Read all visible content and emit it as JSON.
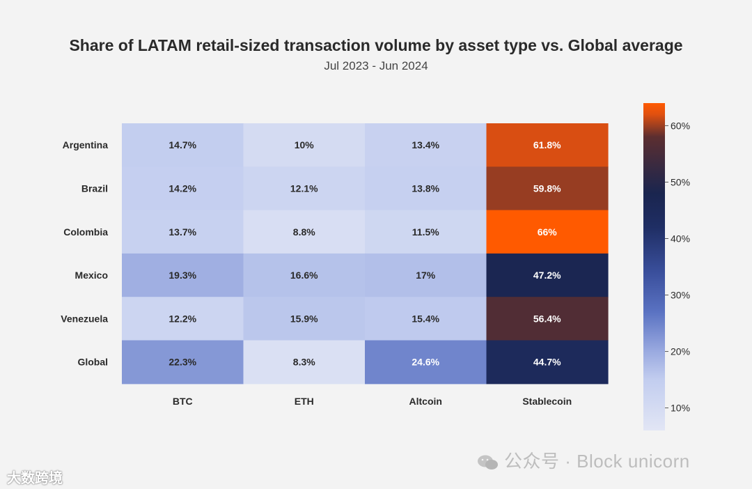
{
  "chart_data": {
    "type": "heatmap",
    "title": "Share of LATAM retail-sized transaction volume by asset type vs. Global average",
    "subtitle": "Jul 2023 - Jun 2024",
    "columns": [
      "BTC",
      "ETH",
      "Altcoin",
      "Stablecoin"
    ],
    "rows": [
      "Argentina",
      "Brazil",
      "Colombia",
      "Mexico",
      "Venezuela",
      "Global"
    ],
    "values": [
      [
        14.7,
        10,
        13.4,
        61.8
      ],
      [
        14.2,
        12.1,
        13.8,
        59.8
      ],
      [
        13.7,
        8.8,
        11.5,
        66
      ],
      [
        19.3,
        16.6,
        17,
        47.2
      ],
      [
        12.2,
        15.9,
        15.4,
        56.4
      ],
      [
        22.3,
        8.3,
        24.6,
        44.7
      ]
    ],
    "value_labels": [
      [
        "14.7%",
        "10%",
        "13.4%",
        "61.8%"
      ],
      [
        "14.2%",
        "12.1%",
        "13.8%",
        "59.8%"
      ],
      [
        "13.7%",
        "8.8%",
        "11.5%",
        "66%"
      ],
      [
        "19.3%",
        "16.6%",
        "17%",
        "47.2%"
      ],
      [
        "12.2%",
        "15.9%",
        "15.4%",
        "56.4%"
      ],
      [
        "22.3%",
        "8.3%",
        "24.6%",
        "44.7%"
      ]
    ],
    "colorbar": {
      "range": [
        6,
        64
      ],
      "ticks": [
        10,
        20,
        30,
        40,
        50,
        60
      ],
      "tick_labels": [
        "10%",
        "20%",
        "30%",
        "40%",
        "50%",
        "60%"
      ],
      "stops": [
        {
          "v": 6,
          "c": "#e2e6f5"
        },
        {
          "v": 15,
          "c": "#c2cdef"
        },
        {
          "v": 20,
          "c": "#9aaae0"
        },
        {
          "v": 27,
          "c": "#5a72c2"
        },
        {
          "v": 34,
          "c": "#3a4f9c"
        },
        {
          "v": 42,
          "c": "#1f2e64"
        },
        {
          "v": 48,
          "c": "#1a254f"
        },
        {
          "v": 53,
          "c": "#3a2a40"
        },
        {
          "v": 58,
          "c": "#5c2e30"
        },
        {
          "v": 62,
          "c": "#e05010"
        },
        {
          "v": 64,
          "c": "#ff5a00"
        }
      ]
    }
  },
  "watermarks": {
    "bottom_left": "大数跨境",
    "bottom_right": "公众号 · Block unicorn"
  }
}
